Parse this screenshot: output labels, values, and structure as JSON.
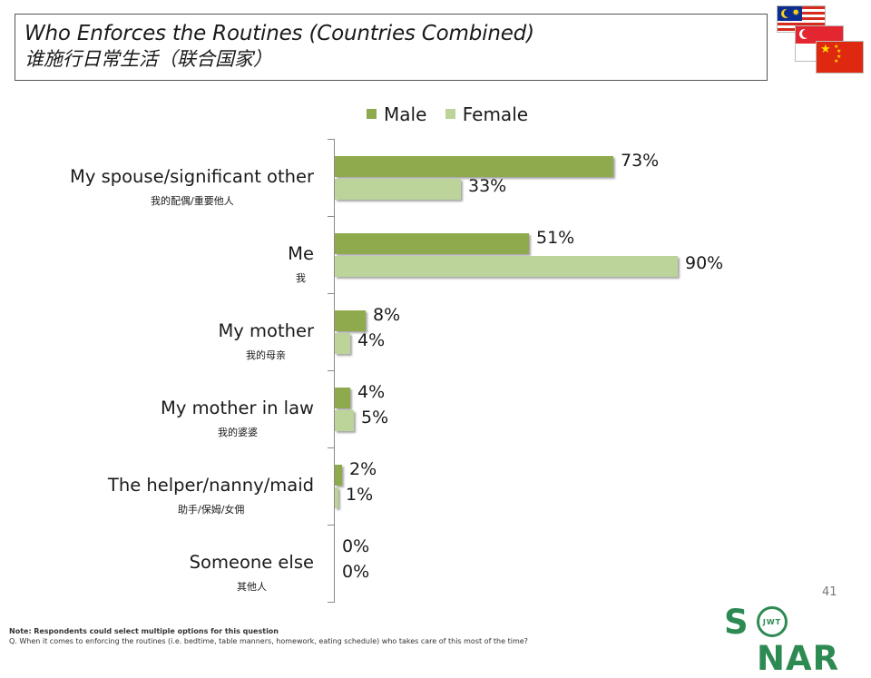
{
  "title": {
    "en": "Who Enforces the Routines (Countries Combined)",
    "zh": "谁施行日常生活（联合国家）"
  },
  "flags": [
    "malaysia-flag",
    "singapore-flag",
    "china-flag"
  ],
  "colors": {
    "male": "#8eaa4c",
    "female": "#bcd49a",
    "logo": "#2e8a53"
  },
  "chart_data": {
    "type": "bar",
    "orientation": "horizontal",
    "categories": [
      "My spouse/significant other",
      "Me",
      "My mother",
      "My mother in law",
      "The helper/nanny/maid",
      "Someone else"
    ],
    "categories_zh": [
      "我的配偶/重要他人",
      "我",
      "我的母亲",
      "我的婆婆",
      "助手/保姆/女佣",
      "其他人"
    ],
    "series": [
      {
        "name": "Male",
        "values": [
          73,
          51,
          8,
          4,
          2,
          0
        ],
        "labels": [
          "73%",
          "51%",
          "8%",
          "4%",
          "2%",
          "0%"
        ]
      },
      {
        "name": "Female",
        "values": [
          33,
          90,
          4,
          5,
          1,
          0
        ],
        "labels": [
          "33%",
          "90%",
          "4%",
          "5%",
          "1%",
          "0%"
        ]
      }
    ],
    "xlim": [
      0,
      100
    ],
    "legend": "top"
  },
  "page_number": "41",
  "logo": {
    "text_left": "S",
    "text_right": "NAR",
    "ring_text": "JWT"
  },
  "notes": {
    "note_label": "Note:",
    "note": "Respondents could select multiple options for this question",
    "question": "Q. When it comes to enforcing the routines (i.e. bedtime, table manners, homework, eating schedule) who takes care of this most of the time?"
  }
}
